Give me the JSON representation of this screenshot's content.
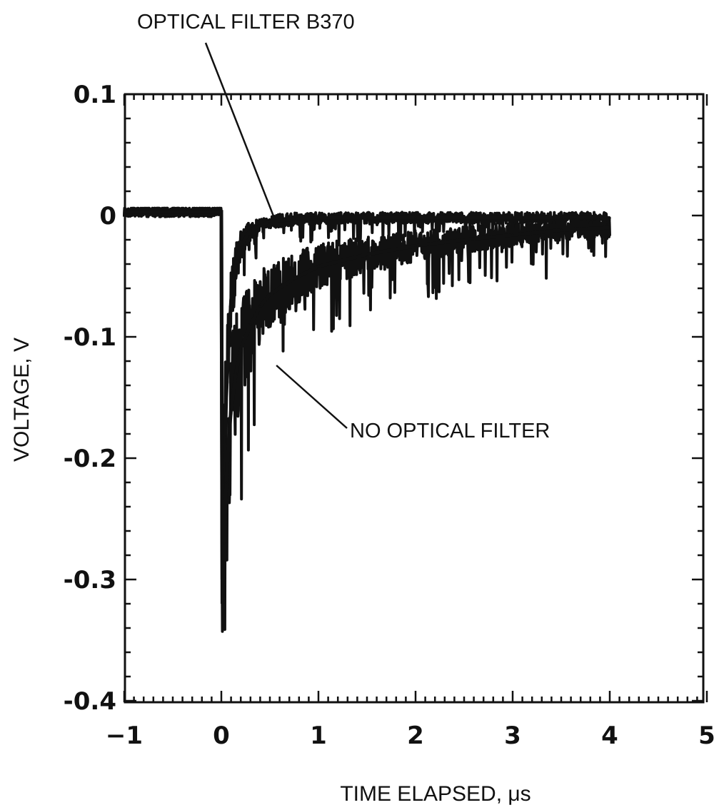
{
  "chart_data": {
    "type": "line",
    "title": "",
    "xlabel": "TIME ELAPSED, μs",
    "ylabel": "VOLTAGE, V",
    "xlim": [
      -1,
      5
    ],
    "ylim": [
      -0.4,
      0.1
    ],
    "x_ticks": [
      -1,
      0,
      1,
      2,
      3,
      4,
      5
    ],
    "x_tick_labels": [
      "−1",
      "0",
      "1",
      "2",
      "3",
      "4",
      "5"
    ],
    "y_ticks": [
      0.1,
      0,
      -0.1,
      -0.2,
      -0.3,
      -0.4
    ],
    "y_tick_labels": [
      "0.1",
      "0",
      "-0.1",
      "-0.2",
      "-0.3",
      "-0.4"
    ],
    "grid": false,
    "line_color": "#111111",
    "series": [
      {
        "x": [
          -1.0,
          -0.5,
          0.0,
          0.01,
          0.03,
          0.05,
          0.08,
          0.1,
          0.15,
          0.2,
          0.3,
          0.5,
          0.75,
          1.0,
          1.5,
          2.0,
          2.5,
          3.0,
          3.5,
          4.0
        ],
        "y": [
          0.003,
          0.003,
          0.003,
          -0.3,
          -0.22,
          -0.15,
          -0.1,
          -0.07,
          -0.04,
          -0.025,
          -0.012,
          -0.005,
          -0.003,
          -0.002,
          -0.002,
          -0.002,
          -0.002,
          -0.002,
          -0.002,
          -0.002
        ]
      },
      {
        "x": [
          -1.0,
          -0.5,
          0.0,
          0.01,
          0.03,
          0.05,
          0.08,
          0.1,
          0.15,
          0.2,
          0.3,
          0.4,
          0.5,
          0.75,
          1.0,
          1.5,
          2.0,
          2.5,
          3.0,
          3.5,
          4.0
        ],
        "y": [
          0.003,
          0.003,
          0.003,
          -0.32,
          -0.27,
          -0.22,
          -0.18,
          -0.16,
          -0.13,
          -0.11,
          -0.09,
          -0.075,
          -0.065,
          -0.052,
          -0.042,
          -0.032,
          -0.025,
          -0.02,
          -0.016,
          -0.012,
          -0.01
        ]
      }
    ],
    "annotations": [
      {
        "text": "OPTICAL FILTER B370",
        "x": 0.28,
        "y": -0.002
      },
      {
        "text": "NO OPTICAL FILTER",
        "x": 0.42,
        "y": -0.12
      }
    ]
  }
}
